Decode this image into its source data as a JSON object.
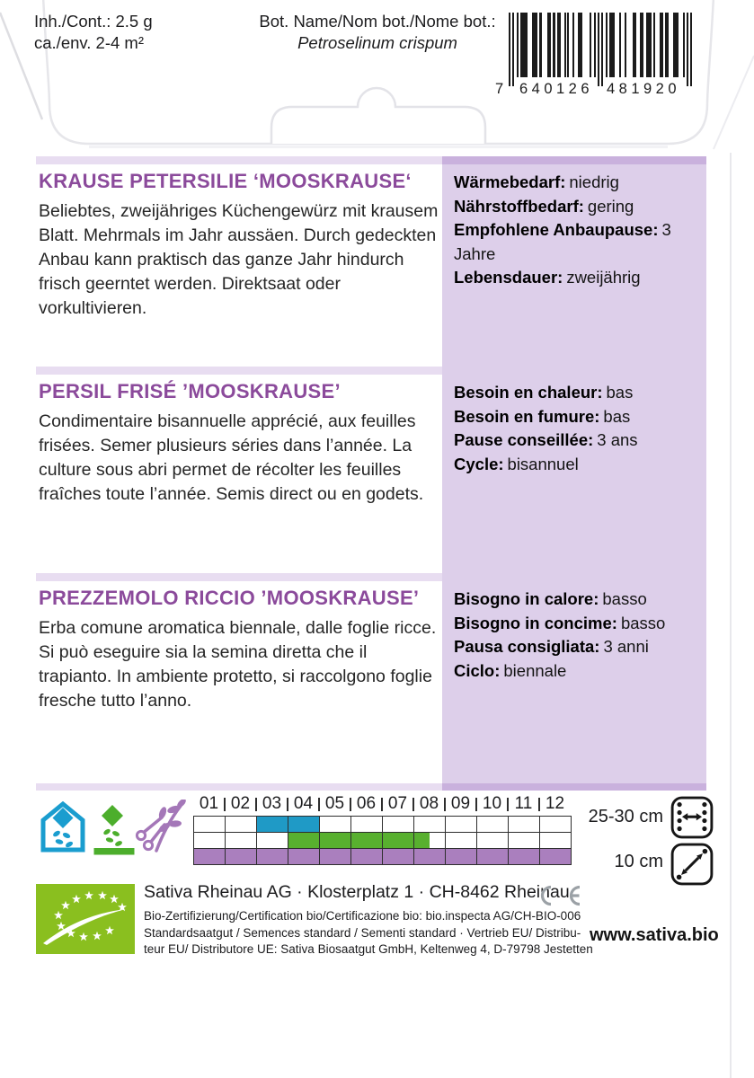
{
  "header": {
    "content_label": "Inh./Cont.: 2.5 g",
    "area_label": "ca./env. 2-4 m²",
    "bot_label": "Bot. Name/Nom bot./Nome bot.:",
    "bot_value": "Petroselinum crispum",
    "barcode": {
      "first": "7",
      "group1": "640126",
      "group2": "481920"
    }
  },
  "sections": [
    {
      "lang": "de",
      "title": "KRAUSE PETERSILIE ‘MOOSKRAUSE‘",
      "body": "Beliebtes, zweijähriges Küchengewürz mit krausem Blatt. Mehrmals im Jahr aussäen. Durch gedeckten Anbau kann praktisch das ganze Jahr hindurch frisch geerntet werden. Direktsaat oder vorkultivieren.",
      "facts": [
        {
          "label": "Wärmebedarf:",
          "value": "niedrig"
        },
        {
          "label": "Nährstoffbedarf:",
          "value": "gering"
        },
        {
          "label": "Empfohlene Anbaupause:",
          "value": "3 Jahre"
        },
        {
          "label": "Lebensdauer:",
          "value": "zweijährig"
        }
      ]
    },
    {
      "lang": "fr",
      "title": "PERSIL FRISÉ ’MOOSKRAUSE’",
      "body": "Condimentaire bisannuelle apprécié, aux feuilles frisées. Semer plusieurs séries dans l’année. La culture sous abri permet de récolter les feuilles fraîches toute l’année. Semis direct ou en godets.",
      "facts": [
        {
          "label": "Besoin en chaleur:",
          "value": "bas"
        },
        {
          "label": "Besoin en fumure:",
          "value": "bas"
        },
        {
          "label": "Pause conseillée:",
          "value": "3 ans"
        },
        {
          "label": "Cycle:",
          "value": "bisannuel"
        }
      ]
    },
    {
      "lang": "it",
      "title": "PREZZEMOLO RICCIO ’MOOSKRAUSE’",
      "body": "Erba comune aromatica biennale, dalle foglie ricce. Si può eseguire sia la semina diretta che il trapianto. In ambiente protetto, si raccolgono foglie fresche tutto l’anno.",
      "facts": [
        {
          "label": "Bisogno in calore:",
          "value": "basso"
        },
        {
          "label": "Bisogno in concime:",
          "value": "basso"
        },
        {
          "label": "Pausa consigliata:",
          "value": "3 anni"
        },
        {
          "label": "Ciclo:",
          "value": "biennale"
        }
      ]
    }
  ],
  "calendar": {
    "months": [
      "01",
      "02",
      "03",
      "04",
      "05",
      "06",
      "07",
      "08",
      "09",
      "10",
      "11",
      "12"
    ],
    "rows": [
      {
        "name": "sowing-protected",
        "label": "03–04",
        "color": "#1f9ac6",
        "start": 3,
        "end": 5
      },
      {
        "name": "sowing-direct",
        "label": "04–08",
        "color": "#58b02f",
        "start": 4,
        "end": 8.5
      },
      {
        "name": "harvest",
        "label": "01–12",
        "color": "#aa7fbe",
        "start": 1,
        "end": 13
      }
    ],
    "spacing": [
      {
        "label": "25-30 cm",
        "icon": "row-spacing-icon"
      },
      {
        "label": "10 cm",
        "icon": "plant-spacing-icon"
      }
    ]
  },
  "footer": {
    "address": "Sativa Rheinau AG · Klosterplatz 1 · CH-8462 Rheinau",
    "ce_mark": "CE",
    "cert_lines": [
      "Bio-Zertifizierung/Certification bio/Certificazione bio: bio.inspecta AG/CH-BIO-006",
      "Standardsaatgut / Semences standard / Sementi standard · Vertrieb EU/ Distribu-",
      "teur EU/ Distributore UE: Sativa Biosaatgut GmbH, Keltenweg 4, D-79798 Jestetten"
    ],
    "website": "www.sativa.bio"
  },
  "colors": {
    "accent_purple": "#8b4a9b",
    "panel_lavender": "#ddcfea",
    "band_lavender": "#e8ddf1",
    "strip_lavender": "#c9b1dd",
    "calendar_blue": "#1f9ac6",
    "calendar_green": "#58b02f",
    "calendar_purple": "#aa7fbe",
    "eu_logo_green": "#8abf1f"
  }
}
